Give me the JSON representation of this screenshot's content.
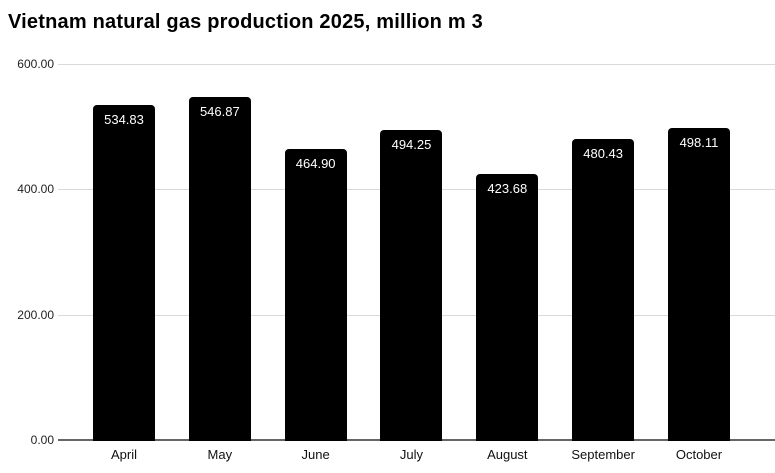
{
  "title": "Vietnam natural gas production 2025, million m 3",
  "chart_data": {
    "type": "bar",
    "title": "Vietnam natural gas production 2025, million m 3",
    "categories": [
      "April",
      "May",
      "June",
      "July",
      "August",
      "September",
      "October"
    ],
    "values": [
      534.83,
      546.87,
      464.9,
      494.25,
      423.68,
      480.43,
      498.11
    ],
    "value_labels": [
      "534.83",
      "546.87",
      "464.90",
      "494.25",
      "423.68",
      "480.43",
      "498.11"
    ],
    "xlabel": "",
    "ylabel": "",
    "ylim": [
      0,
      600
    ],
    "yticks": [
      0,
      200,
      400,
      600
    ],
    "ytick_labels": [
      "0.00",
      "200.00",
      "400.00",
      "600.00"
    ],
    "grid": true,
    "legend": "none",
    "colors": {
      "bar": "#000000",
      "bar_label": "#ffffff",
      "gridline": "#d9d9d9",
      "axis_line": "#666666",
      "tick_label": "#1f1f1f",
      "category_label": "#111111",
      "title": "#000000",
      "background": "#ffffff"
    }
  }
}
